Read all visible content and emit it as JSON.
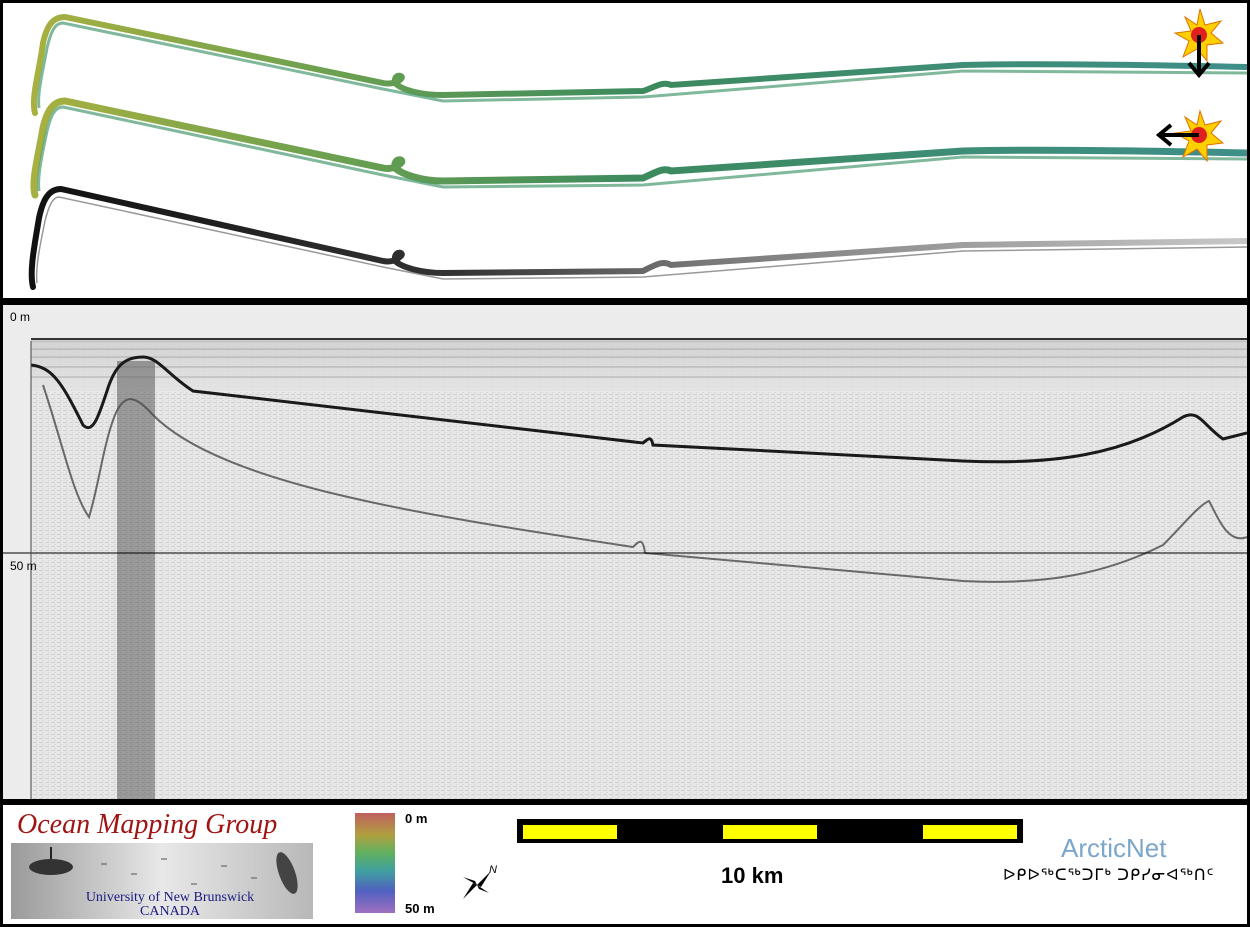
{
  "profile": {
    "depth_top_label": "0 m",
    "depth_mid_label": "50 m"
  },
  "legend": {
    "ocean_mapping_group": "Ocean Mapping Group",
    "university": "University of New Brunswick",
    "country": "CANADA",
    "colorbar_top": "0 m",
    "colorbar_bottom": "50 m",
    "scale_label": "10 km",
    "north_label": "N",
    "arcticnet_name": "ArcticNet",
    "arcticnet_syllabics": "ᐅᑭᐅᖅᑕᖅᑐᒥᒃ ᑐᑭᓯᓂᐊᖅᑎᑦ"
  },
  "colors": {
    "track_green_dark": "#3d8a5e",
    "track_yellow": "#a8b040",
    "track_teal": "#3f8f8a",
    "marker_red": "#e02020",
    "marker_yellow": "#ffd000",
    "scale_yellow": "#ffff00",
    "omg_red": "#a01414",
    "arcticnet_blue": "#7aa6cc"
  }
}
